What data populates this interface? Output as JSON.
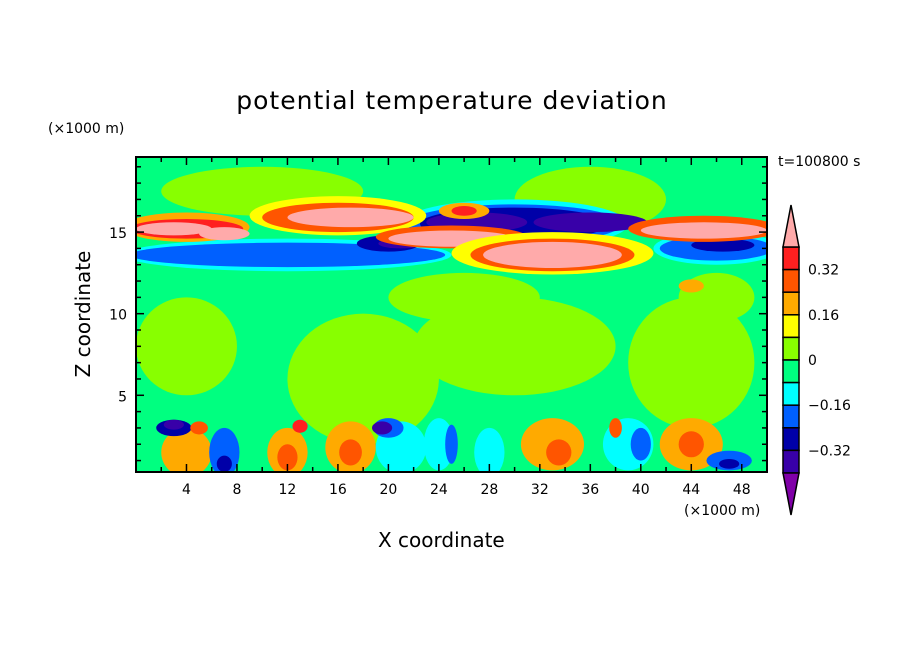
{
  "chart_data": {
    "type": "heatmap",
    "title": "potential temperature deviation",
    "xlabel": "X coordinate",
    "ylabel": "Z coordinate",
    "x_unit": "(×1000 m)",
    "z_unit": "(×1000 m)",
    "time_label": "t=100800 s",
    "xlim": [
      0,
      50
    ],
    "ylim": [
      0.3,
      19.6
    ],
    "x_ticks": [
      4,
      8,
      12,
      16,
      20,
      24,
      28,
      32,
      36,
      40,
      44,
      48
    ],
    "y_ticks": [
      5,
      10,
      15
    ],
    "levels": [
      -0.4,
      -0.32,
      -0.24,
      -0.16,
      -0.08,
      0,
      0.08,
      0.16,
      0.24,
      0.32,
      0.4
    ],
    "colorbar_labels": [
      {
        "value": 0.32,
        "text": "0.32"
      },
      {
        "value": 0.16,
        "text": "0.16"
      },
      {
        "value": 0,
        "text": "0"
      },
      {
        "value": -0.16,
        "text": "-0.16"
      },
      {
        "value": -0.32,
        "text": "-0.32"
      }
    ],
    "colors": [
      "#8000a8",
      "#3800a8",
      "#0000a8",
      "#0060ff",
      "#00ffff",
      "#00ff80",
      "#88ff00",
      "#ffff00",
      "#ffaa00",
      "#ff5500",
      "#ff2020",
      "#ffaaaa"
    ],
    "background_class": 5,
    "features": [
      [
        4,
        8,
        4,
        3,
        6
      ],
      [
        18,
        6,
        6,
        4,
        6
      ],
      [
        30,
        8,
        8,
        3,
        6
      ],
      [
        44,
        7,
        5,
        4,
        6
      ],
      [
        26,
        11,
        6,
        1.5,
        6
      ],
      [
        10,
        17.5,
        8,
        1.5,
        6
      ],
      [
        36,
        17,
        6,
        2,
        6
      ],
      [
        46,
        11,
        3,
        1.5,
        6
      ],
      [
        12,
        13.6,
        13,
        1,
        4
      ],
      [
        12,
        13.6,
        12.5,
        0.75,
        3
      ],
      [
        46,
        14,
        5,
        1,
        4
      ],
      [
        46,
        14,
        4.5,
        0.75,
        3
      ],
      [
        46.5,
        14.2,
        2.5,
        0.4,
        2
      ],
      [
        20,
        14.3,
        2.5,
        0.5,
        2
      ],
      [
        21,
        14.3,
        1.8,
        0.3,
        1
      ],
      [
        30,
        15.5,
        9,
        1.5,
        4
      ],
      [
        30,
        15.5,
        8.5,
        1.2,
        3
      ],
      [
        30,
        15.5,
        7.5,
        1,
        2
      ],
      [
        27,
        15.6,
        4,
        0.6,
        1
      ],
      [
        36,
        15.6,
        4.5,
        0.6,
        1
      ],
      [
        4,
        15.3,
        5,
        0.9,
        8
      ],
      [
        4,
        15.2,
        4.5,
        0.6,
        10
      ],
      [
        3,
        15.2,
        3,
        0.4,
        11
      ],
      [
        7,
        14.9,
        2,
        0.4,
        11
      ],
      [
        16,
        16,
        7,
        1.2,
        7
      ],
      [
        16,
        15.9,
        6,
        0.9,
        9
      ],
      [
        17,
        15.9,
        5,
        0.6,
        11
      ],
      [
        25,
        14.7,
        6,
        0.7,
        9
      ],
      [
        25,
        14.6,
        5,
        0.5,
        11
      ],
      [
        33,
        13.7,
        8,
        1.3,
        7
      ],
      [
        33,
        13.6,
        6.5,
        1,
        9
      ],
      [
        33,
        13.6,
        5.5,
        0.8,
        11
      ],
      [
        26,
        16.3,
        2,
        0.5,
        8
      ],
      [
        26,
        16.3,
        1,
        0.3,
        10
      ],
      [
        45,
        15.2,
        6,
        0.8,
        9
      ],
      [
        45,
        15.1,
        5,
        0.5,
        11
      ],
      [
        44,
        11.7,
        1,
        0.4,
        8
      ],
      [
        4,
        1.5,
        2,
        1.5,
        8
      ],
      [
        12,
        1.5,
        1.6,
        1.5,
        8
      ],
      [
        12,
        1.2,
        0.8,
        0.8,
        9
      ],
      [
        17,
        1.8,
        2,
        1.6,
        8
      ],
      [
        17,
        1.5,
        0.9,
        0.8,
        9
      ],
      [
        33,
        2,
        2.5,
        1.6,
        8
      ],
      [
        33.5,
        1.5,
        1,
        0.8,
        9
      ],
      [
        44,
        2,
        2.5,
        1.6,
        8
      ],
      [
        44,
        2,
        1,
        0.8,
        9
      ],
      [
        7,
        1.5,
        1.2,
        1.5,
        3
      ],
      [
        7,
        0.8,
        0.6,
        0.5,
        2
      ],
      [
        21,
        1.8,
        2,
        1.6,
        4
      ],
      [
        20,
        3,
        1.2,
        0.6,
        3
      ],
      [
        19.5,
        3,
        0.8,
        0.4,
        1
      ],
      [
        3,
        3,
        1.4,
        0.5,
        2
      ],
      [
        3,
        3.2,
        0.8,
        0.3,
        1
      ],
      [
        24,
        2,
        1.2,
        1.6,
        4
      ],
      [
        25,
        2,
        0.5,
        1.2,
        3
      ],
      [
        39,
        2,
        2,
        1.6,
        4
      ],
      [
        40,
        2,
        0.8,
        1,
        3
      ],
      [
        47,
        1,
        1.8,
        0.6,
        3
      ],
      [
        47,
        0.8,
        0.8,
        0.3,
        2
      ],
      [
        28,
        1.5,
        1.2,
        1.5,
        4
      ],
      [
        5,
        3,
        0.7,
        0.4,
        9
      ],
      [
        13,
        3.1,
        0.6,
        0.4,
        10
      ],
      [
        38,
        3,
        0.5,
        0.6,
        9
      ]
    ]
  }
}
